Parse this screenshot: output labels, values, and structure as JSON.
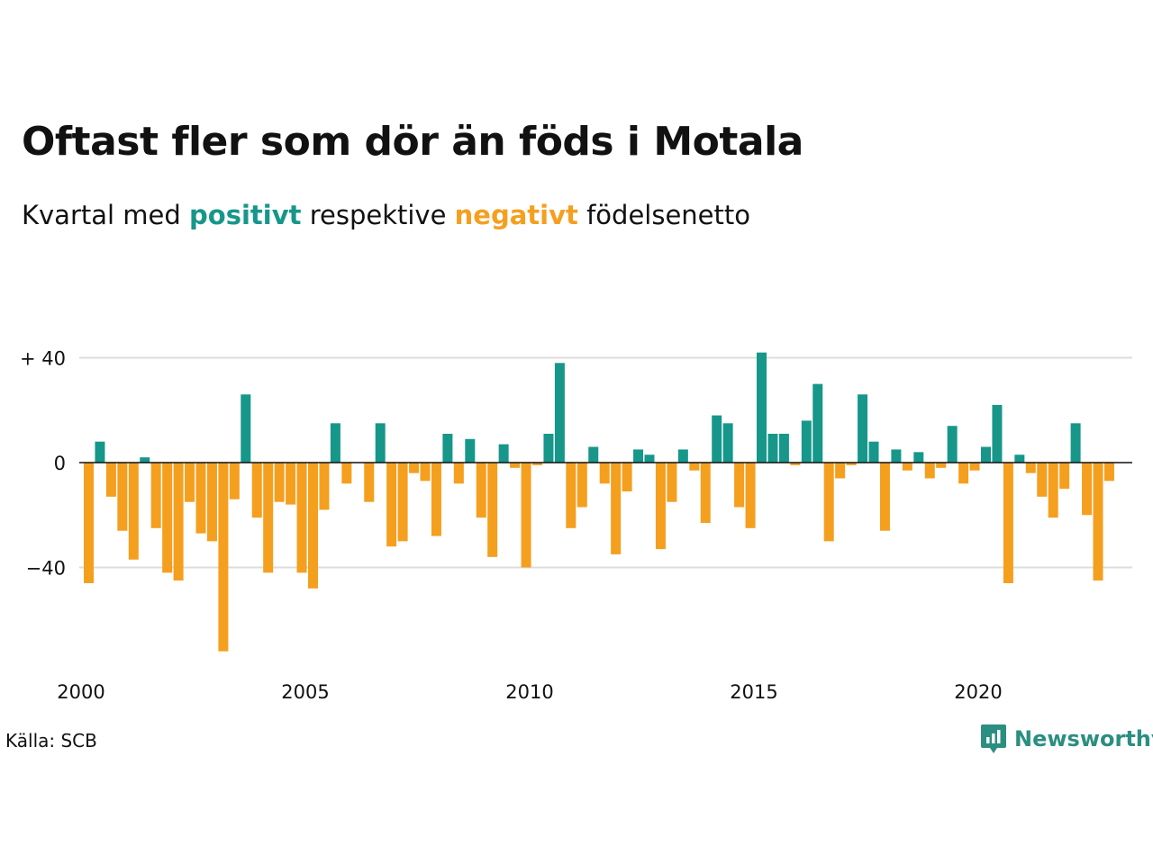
{
  "title": "Oftast fler som dör än föds i Motala",
  "subtitle": {
    "prefix": "Kvartal med",
    "positive": "positivt",
    "middle": "respektive",
    "negative": "negativt",
    "suffix": "födelsenetto"
  },
  "source": "Källa: SCB",
  "brand": {
    "name": "Newsworthy",
    "icon": "newsworthy-logo-icon"
  },
  "colors": {
    "positive": "#16978a",
    "negative": "#f59f1f",
    "grid": "#dddddd",
    "zero": "#111111"
  },
  "chart_data": {
    "type": "bar",
    "x_start": "2000 Q1",
    "x_ticks": [
      "2000",
      "2005",
      "2010",
      "2015",
      "2020"
    ],
    "y_ticks": [
      {
        "value": 40,
        "label": "+ 40"
      },
      {
        "value": 0,
        "label": "0"
      },
      {
        "value": -40,
        "label": "−40"
      }
    ],
    "ylim": [
      -73,
      45
    ],
    "grid": true,
    "values": [
      -46,
      8,
      -13,
      -26,
      -37,
      2,
      -25,
      -42,
      -45,
      -15,
      -27,
      -30,
      -72,
      -14,
      26,
      -21,
      -42,
      -15,
      -16,
      -42,
      -48,
      -18,
      15,
      -8,
      0,
      -15,
      15,
      -32,
      -30,
      -4,
      -7,
      -28,
      11,
      -8,
      9,
      -21,
      -36,
      7,
      -2,
      -40,
      -1,
      11,
      38,
      -25,
      -17,
      6,
      -8,
      -35,
      -11,
      5,
      3,
      -33,
      -15,
      5,
      -3,
      -23,
      18,
      15,
      -17,
      -25,
      42,
      11,
      11,
      -1,
      16,
      30,
      -30,
      -6,
      -1,
      26,
      8,
      -26,
      5,
      -3,
      4,
      -6,
      -2,
      14,
      -8,
      -3,
      6,
      22,
      -46,
      3,
      -4,
      -13,
      -21,
      -10,
      15,
      -20,
      -45,
      -7
    ]
  }
}
